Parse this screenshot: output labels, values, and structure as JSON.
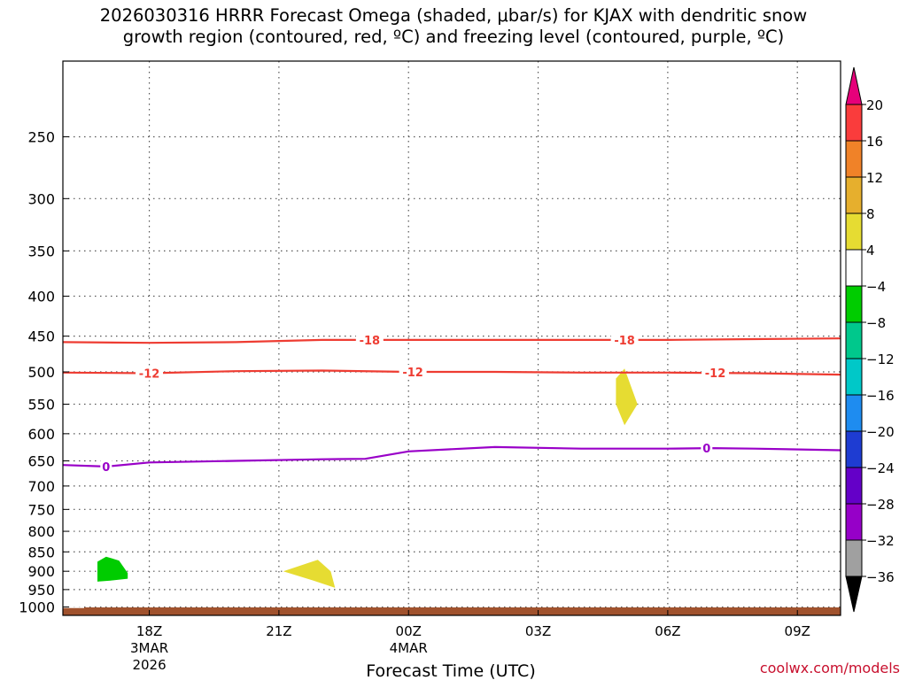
{
  "title": {
    "line1": "2026030316 HRRR Forecast Omega (shaded, μbar/s) for KJAX with dendritic snow",
    "line2": "growth region (contoured, red, ºC) and freezing level (contoured, purple, ºC)"
  },
  "chart_data": {
    "type": "time-height cross section",
    "xlabel": "Forecast Time (UTC)",
    "x_range_hours": [
      16,
      34
    ],
    "x_ticks": [
      {
        "hour": 18,
        "label": "18Z",
        "date": "3MAR",
        "year": "2026"
      },
      {
        "hour": 21,
        "label": "21Z"
      },
      {
        "hour": 24,
        "label": "00Z",
        "date": "4MAR"
      },
      {
        "hour": 27,
        "label": "03Z"
      },
      {
        "hour": 30,
        "label": "06Z"
      },
      {
        "hour": 33,
        "label": "09Z"
      }
    ],
    "y_scale": "log-pressure",
    "y_range_hpa": [
      1025,
      200
    ],
    "y_ticks": [
      250,
      300,
      350,
      400,
      450,
      500,
      550,
      600,
      650,
      700,
      750,
      800,
      850,
      900,
      950,
      1000
    ],
    "grid": true,
    "contours": [
      {
        "name": "-18",
        "color": "#ee3c32",
        "x": [
          16,
          18,
          20,
          22,
          24,
          26,
          28,
          30,
          32,
          34
        ],
        "p": [
          458,
          459,
          458,
          455,
          455,
          455,
          455,
          455,
          454,
          453
        ],
        "labels_at": [
          23.1,
          29.0
        ]
      },
      {
        "name": "-12",
        "color": "#ee3c32",
        "x": [
          16,
          18,
          20,
          22,
          24,
          26,
          28,
          30,
          32,
          34
        ],
        "p": [
          501,
          502,
          499,
          498,
          500,
          500,
          501,
          501,
          502,
          504
        ],
        "labels_at": [
          18.0,
          24.1,
          31.1
        ]
      },
      {
        "name": "0",
        "color": "#9900c8",
        "x": [
          16,
          17.0,
          18,
          20,
          22,
          23,
          24,
          25,
          26,
          28,
          30,
          31,
          32,
          34
        ],
        "p": [
          658,
          661,
          653,
          650,
          647,
          646,
          632,
          628,
          624,
          627,
          627,
          626,
          627,
          630
        ],
        "labels_at": [
          17.0,
          30.9
        ]
      }
    ],
    "shaded_regions": [
      {
        "name": "green area",
        "value_range": [
          -8,
          -4
        ],
        "color": "#00cc00",
        "points": [
          [
            16.8,
            875
          ],
          [
            17.0,
            862
          ],
          [
            17.3,
            872
          ],
          [
            17.5,
            905
          ],
          [
            17.5,
            920
          ],
          [
            17.1,
            925
          ],
          [
            16.8,
            928
          ],
          [
            16.8,
            900
          ]
        ]
      },
      {
        "name": "yellow area near 22Z",
        "value_range": [
          4,
          8
        ],
        "color": "#e6dc32",
        "points": [
          [
            21.1,
            900
          ],
          [
            21.9,
            870
          ],
          [
            22.2,
            900
          ],
          [
            22.3,
            945
          ],
          [
            21.8,
            925
          ]
        ]
      },
      {
        "name": "yellow area near 05Z",
        "value_range": [
          4,
          8
        ],
        "color": "#e6dc32",
        "points": [
          [
            29.0,
            495
          ],
          [
            29.3,
            550
          ],
          [
            29.0,
            585
          ],
          [
            28.8,
            550
          ],
          [
            28.8,
            510
          ]
        ]
      }
    ],
    "ground": {
      "color": "#a0522d"
    },
    "colorbar": {
      "levels": [
        -36,
        -32,
        -28,
        -24,
        -20,
        -16,
        -12,
        -8,
        -4,
        4,
        8,
        12,
        16,
        20
      ],
      "colors": [
        "#a0a0a0",
        "#9600c8",
        "#6400c8",
        "#1e3cd2",
        "#1e8cf0",
        "#00c8c8",
        "#00c88c",
        "#00cc00",
        "#ffffff",
        "#e6dc32",
        "#e6af2d",
        "#f08228",
        "#fa3c3c"
      ],
      "over_color": "#e6007a",
      "under_color": "#000000"
    }
  },
  "credit": "coolwx.com/models"
}
